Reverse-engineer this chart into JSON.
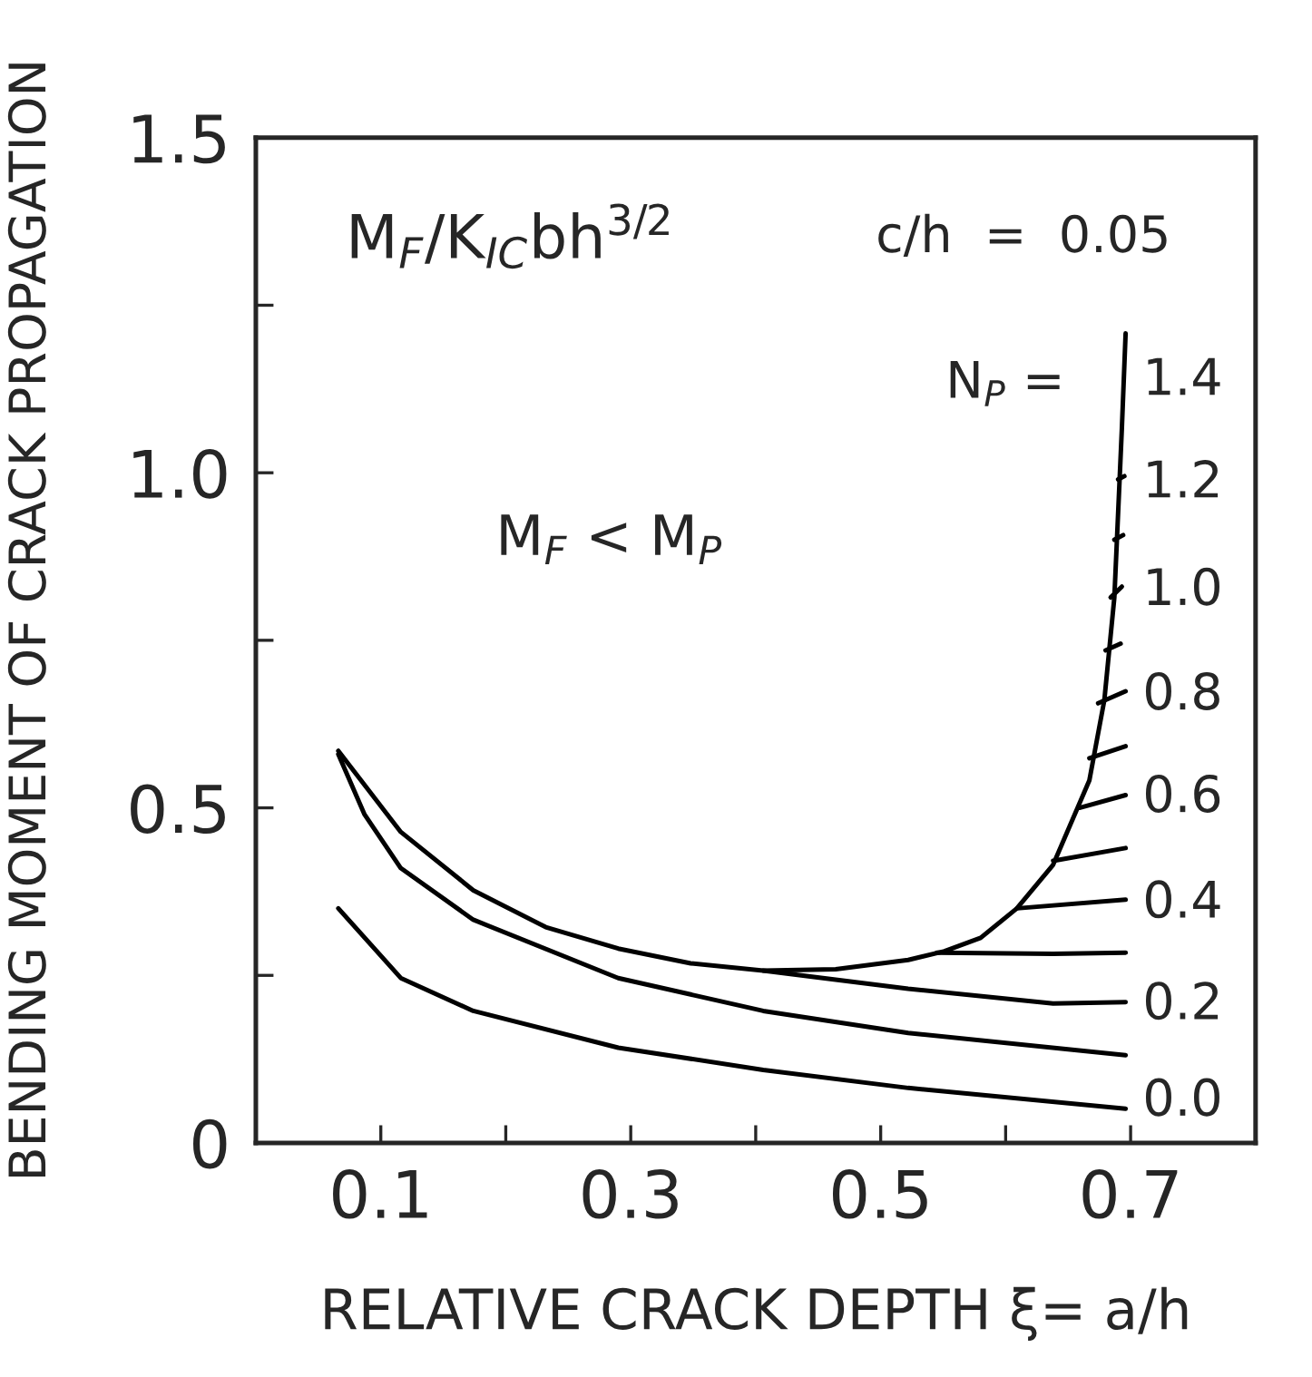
{
  "chart_data": {
    "type": "line",
    "xlabel": "RELATIVE CRACK DEPTH ξ= a/h",
    "ylabel": "BENDING MOMENT OF CRACK PROPAGATION",
    "xlim": [
      0,
      0.8
    ],
    "ylim": [
      0,
      1.5
    ],
    "xticks": [
      {
        "value": 0.1,
        "label": "0.1"
      },
      {
        "value": 0.2,
        "label": null
      },
      {
        "value": 0.3,
        "label": "0.3"
      },
      {
        "value": 0.4,
        "label": null
      },
      {
        "value": 0.5,
        "label": "0.5"
      },
      {
        "value": 0.6,
        "label": null
      },
      {
        "value": 0.7,
        "label": "0.7"
      }
    ],
    "yticks": [
      {
        "value": 0,
        "label": "0"
      },
      {
        "value": 0.25,
        "label": null
      },
      {
        "value": 0.5,
        "label": "0.5"
      },
      {
        "value": 0.75,
        "label": null
      },
      {
        "value": 1.0,
        "label": "1.0"
      },
      {
        "value": 1.25,
        "label": null
      },
      {
        "value": 1.5,
        "label": "1.5"
      }
    ],
    "grid": false,
    "legend": false,
    "marker": "none",
    "line_style": "solid",
    "series": [
      {
        "color": "#000000",
        "x": [
          0.066,
          0.116,
          0.174,
          0.29,
          0.406,
          0.522,
          0.696
        ],
        "values": [
          0.35,
          0.246,
          0.197,
          0.142,
          0.109,
          0.082,
          0.051
        ]
      },
      {
        "color": "#000000",
        "x": [
          0.066,
          0.087,
          0.116,
          0.174,
          0.29,
          0.406,
          0.522,
          0.696
        ],
        "values": [
          0.58,
          0.49,
          0.41,
          0.333,
          0.246,
          0.197,
          0.164,
          0.131
        ]
      },
      {
        "color": "#000000",
        "x": [
          0.066,
          0.116,
          0.174,
          0.232,
          0.29,
          0.348,
          0.406,
          0.464,
          0.522,
          0.551,
          0.58,
          0.609,
          0.638,
          0.667,
          0.679,
          0.687,
          0.693,
          0.696
        ],
        "values": [
          0.585,
          0.464,
          0.377,
          0.322,
          0.29,
          0.268,
          0.257,
          0.259,
          0.273,
          0.286,
          0.306,
          0.35,
          0.415,
          0.541,
          0.661,
          0.814,
          1.066,
          1.208
        ]
      },
      {
        "color": "#000000",
        "x": [
          0.406,
          0.522,
          0.638,
          0.696
        ],
        "values": [
          0.257,
          0.23,
          0.208,
          0.21
        ]
      },
      {
        "color": "#000000",
        "x": [
          0.545,
          0.638,
          0.696
        ],
        "values": [
          0.284,
          0.282,
          0.284
        ]
      },
      {
        "color": "#000000",
        "x": [
          0.609,
          0.696
        ],
        "values": [
          0.35,
          0.363
        ]
      },
      {
        "color": "#000000",
        "x": [
          0.638,
          0.696
        ],
        "values": [
          0.421,
          0.44
        ]
      },
      {
        "color": "#000000",
        "x": [
          0.659,
          0.696
        ],
        "values": [
          0.5,
          0.519
        ]
      },
      {
        "color": "#000000",
        "x": [
          0.667,
          0.696
        ],
        "values": [
          0.574,
          0.592
        ]
      },
      {
        "color": "#000000",
        "x": [
          0.674,
          0.696
        ],
        "values": [
          0.656,
          0.674
        ]
      },
      {
        "color": "#000000",
        "x": [
          0.68,
          0.692
        ],
        "values": [
          0.735,
          0.745
        ]
      },
      {
        "color": "#000000",
        "x": [
          0.684,
          0.693
        ],
        "values": [
          0.814,
          0.83
        ]
      },
      {
        "color": "#000000",
        "x": [
          0.687,
          0.694
        ],
        "values": [
          0.9,
          0.907
        ]
      },
      {
        "color": "#000000",
        "x": [
          0.69,
          0.695
        ],
        "values": [
          0.99,
          0.995
        ]
      }
    ],
    "annotations": [
      "M$_{F}$/K$_{IC}$bh$^{3/2}$",
      "c/h  =  0.05",
      "M$_{F}$ < M$_{P}$",
      "N$_{P}$ =",
      "1.4",
      "1.2",
      "1.0",
      "0.8",
      "0.6",
      "0.4",
      "0.2",
      "0.0"
    ]
  }
}
